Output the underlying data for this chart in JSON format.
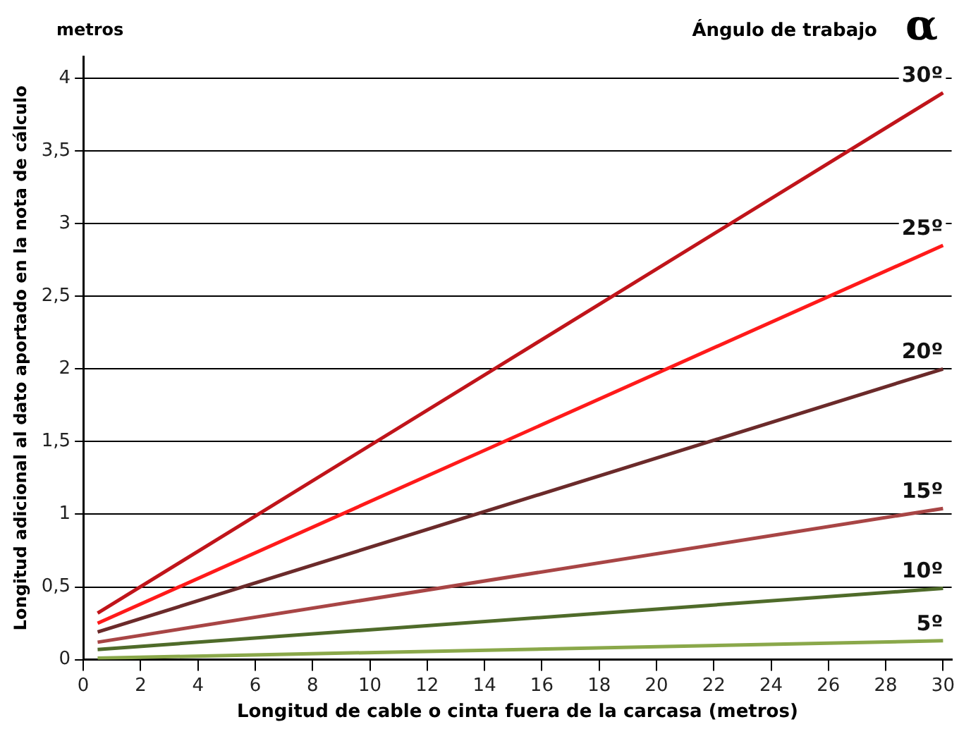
{
  "chart_data": {
    "type": "line",
    "xlabel": "Longitud de cable o cinta fuera de la carcasa (metros)",
    "ylabel": "Longitud adicional al dato aportado en la nota de cálculo",
    "annotations": [
      "metros",
      "Ángulo de trabajo",
      "α"
    ],
    "x": [
      0.5,
      30
    ],
    "series": [
      {
        "name": "30º",
        "color": "#c0141a",
        "values": [
          0.32,
          3.9
        ]
      },
      {
        "name": "25º",
        "color": "#ff1a1a",
        "values": [
          0.25,
          2.85
        ]
      },
      {
        "name": "20º",
        "color": "#6b2a2a",
        "values": [
          0.19,
          2.0
        ]
      },
      {
        "name": "15º",
        "color": "#a84545",
        "values": [
          0.12,
          1.04
        ]
      },
      {
        "name": "10º",
        "color": "#4f6b2a",
        "values": [
          0.07,
          0.49
        ]
      },
      {
        "name": "5º",
        "color": "#8aa84a",
        "values": [
          0.01,
          0.13
        ]
      }
    ],
    "xlim": [
      0,
      30.3
    ],
    "ylim": [
      0,
      4.15
    ],
    "xticks": [
      0,
      2,
      4,
      6,
      8,
      10,
      12,
      14,
      16,
      18,
      20,
      22,
      24,
      26,
      28,
      30
    ],
    "yticks": [
      0,
      {
        "value": 0.5,
        "label": "0,5"
      },
      1,
      {
        "value": 1.5,
        "label": "1,5"
      },
      2,
      {
        "value": 2.5,
        "label": "2,5"
      },
      3,
      {
        "value": 3.5,
        "label": "3,5"
      },
      4
    ],
    "grid": "y",
    "legend": false,
    "marker": "none",
    "line_style": "solid"
  }
}
